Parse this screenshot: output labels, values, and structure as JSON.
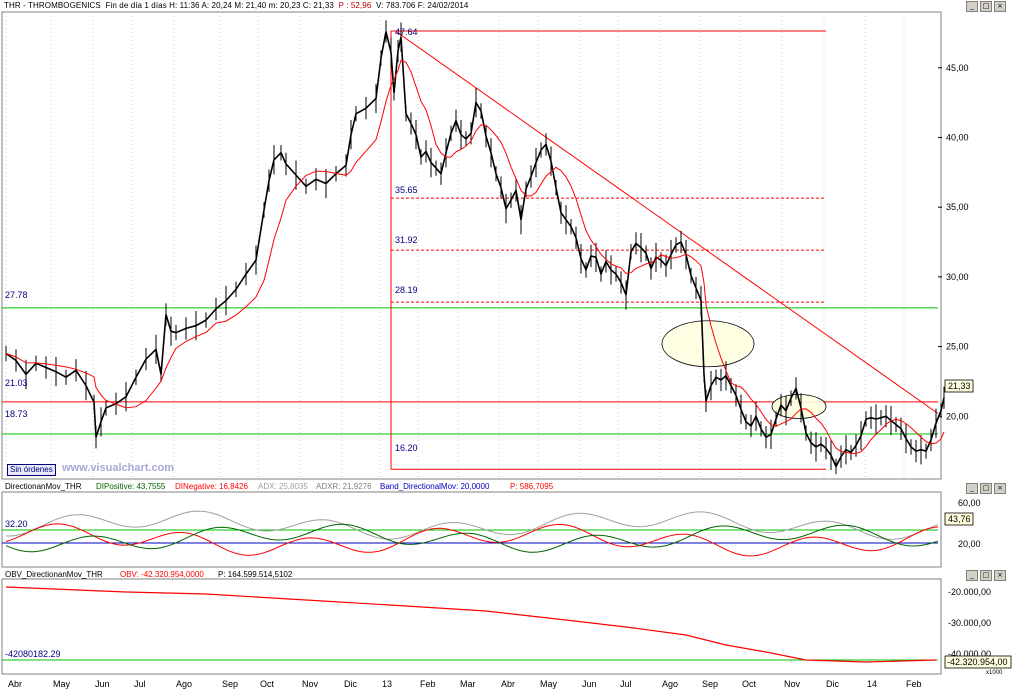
{
  "window": {
    "ticker": "THR - THROMBOGENICS",
    "info": "Fin de día 1 días  H: 11:36  A: 20,24  M: 21,40  m: 20,23  C: 21,33",
    "pct": "P : 52,96",
    "extra": "V: 783.706  F: 24/02/2014",
    "buttons": [
      "_",
      "□",
      "×"
    ]
  },
  "price_panel": {
    "y_ticks": [
      "45,00",
      "40,00",
      "35,00",
      "30,00",
      "25,00",
      "20,00"
    ],
    "last_price": "21,33",
    "levels": {
      "high": "47.64",
      "fib1": "35.65",
      "fib2": "31.92",
      "fib3": "28.19",
      "low": "16.20",
      "support1": "27.78",
      "support2": "21.03",
      "support3": "18.73"
    },
    "badge": "Sin órdenes",
    "brand": "www.visualchart.com"
  },
  "dmi_panel": {
    "label_name": "DirectionanMov_THR",
    "dip": "DIPositive: 43,7555",
    "din": "DINegative: 16,8426",
    "adx": "ADX: 25,8035",
    "adxr": "ADXR: 21,9276",
    "band": "Band_DirectionalMov: 20,0000",
    "p": "P: 586,7095",
    "level_label": "32.20",
    "y_ticks": [
      "60,00",
      "20,00"
    ],
    "last_value": "43,76"
  },
  "obv_panel": {
    "label_name": "OBV_DirectionanMov_THR",
    "obv": "OBV: -42.320.954,0000",
    "p": "P: 164.599.514,5102",
    "level_label": "-42080182.29",
    "y_ticks": [
      "-20.000,00",
      "-30.000,00",
      "-40.000,00"
    ],
    "last_value": "-42.320.954,00",
    "scale": "x1000"
  },
  "x_axis": [
    "Abr",
    "May",
    "Jun",
    "Jul",
    "Ago",
    "Sep",
    "Oct",
    "Nov",
    "Dic",
    "13",
    "Feb",
    "Mar",
    "Abr",
    "May",
    "Jun",
    "Jul",
    "Ago",
    "Sep",
    "Oct",
    "Nov",
    "Dic",
    "14",
    "Feb"
  ],
  "chart_data": {
    "type": "line",
    "series": [
      {
        "name": "THR",
        "points": [
          [
            0,
            24.5
          ],
          [
            10,
            24
          ],
          [
            20,
            23
          ],
          [
            30,
            23.8
          ],
          [
            40,
            23.5
          ],
          [
            50,
            23.2
          ],
          [
            60,
            22.8
          ],
          [
            70,
            23.3
          ],
          [
            80,
            22.2
          ],
          [
            88,
            21
          ],
          [
            90,
            18.5
          ],
          [
            95,
            19.6
          ],
          [
            100,
            20.6
          ],
          [
            110,
            20.9
          ],
          [
            120,
            21.4
          ],
          [
            130,
            22.8
          ],
          [
            140,
            24.1
          ],
          [
            150,
            24.8
          ],
          [
            155,
            23
          ],
          [
            160,
            27.3
          ],
          [
            165,
            26.1
          ],
          [
            170,
            26
          ],
          [
            180,
            26.3
          ],
          [
            190,
            26.5
          ],
          [
            200,
            26.9
          ],
          [
            210,
            27.7
          ],
          [
            220,
            28.3
          ],
          [
            230,
            29.1
          ],
          [
            240,
            30.2
          ],
          [
            250,
            31.2
          ],
          [
            258,
            34.8
          ],
          [
            263,
            36.9
          ],
          [
            268,
            38.4
          ],
          [
            275,
            38.9
          ],
          [
            280,
            38.1
          ],
          [
            290,
            37.3
          ],
          [
            300,
            36.5
          ],
          [
            310,
            37
          ],
          [
            320,
            36.7
          ],
          [
            330,
            37.4
          ],
          [
            340,
            38
          ],
          [
            345,
            40.2
          ],
          [
            350,
            41.7
          ],
          [
            360,
            42.1
          ],
          [
            370,
            42.8
          ],
          [
            375,
            45.7
          ],
          [
            380,
            47.6
          ],
          [
            385,
            46.1
          ],
          [
            388,
            43.2
          ],
          [
            392,
            46.2
          ],
          [
            395,
            47.2
          ],
          [
            400,
            41.7
          ],
          [
            405,
            41
          ],
          [
            410,
            40.2
          ],
          [
            415,
            38.6
          ],
          [
            420,
            39
          ],
          [
            425,
            38.2
          ],
          [
            430,
            37.8
          ],
          [
            435,
            37.4
          ],
          [
            440,
            38.9
          ],
          [
            445,
            40.3
          ],
          [
            450,
            41.2
          ],
          [
            455,
            40.2
          ],
          [
            460,
            39.9
          ],
          [
            465,
            40.3
          ],
          [
            470,
            42.5
          ],
          [
            475,
            41.9
          ],
          [
            480,
            40.1
          ],
          [
            485,
            38.9
          ],
          [
            490,
            37.4
          ],
          [
            495,
            36.4
          ],
          [
            500,
            34.9
          ],
          [
            505,
            35.5
          ],
          [
            510,
            36.2
          ],
          [
            515,
            34.1
          ],
          [
            520,
            36.3
          ],
          [
            525,
            37.2
          ],
          [
            530,
            38.2
          ],
          [
            535,
            39.1
          ],
          [
            540,
            39.5
          ],
          [
            545,
            38.3
          ],
          [
            550,
            36.4
          ],
          [
            555,
            34.6
          ],
          [
            560,
            34.1
          ],
          [
            565,
            33.6
          ],
          [
            570,
            32.8
          ],
          [
            575,
            31.3
          ],
          [
            580,
            30.5
          ],
          [
            585,
            31.5
          ],
          [
            590,
            31.4
          ],
          [
            595,
            30.2
          ],
          [
            600,
            31.1
          ],
          [
            605,
            30.5
          ],
          [
            610,
            30.2
          ],
          [
            615,
            29.6
          ],
          [
            620,
            28.7
          ],
          [
            625,
            31.8
          ],
          [
            630,
            32.4
          ],
          [
            635,
            32.1
          ],
          [
            640,
            31.7
          ],
          [
            645,
            30.6
          ],
          [
            650,
            31.4
          ],
          [
            655,
            31.2
          ],
          [
            660,
            30.8
          ],
          [
            665,
            31.6
          ],
          [
            670,
            32.3
          ],
          [
            675,
            32.5
          ],
          [
            680,
            31.6
          ],
          [
            685,
            30.1
          ],
          [
            690,
            29.2
          ],
          [
            695,
            28.3
          ],
          [
            698,
            23
          ],
          [
            700,
            21.1
          ],
          [
            705,
            22.2
          ],
          [
            710,
            22.8
          ],
          [
            715,
            22.6
          ],
          [
            720,
            22.9
          ],
          [
            725,
            22.2
          ],
          [
            730,
            21.5
          ],
          [
            735,
            20.5
          ],
          [
            740,
            19.6
          ],
          [
            745,
            19.3
          ],
          [
            750,
            20
          ],
          [
            755,
            19.1
          ],
          [
            760,
            18.5
          ],
          [
            765,
            18.7
          ],
          [
            770,
            19.8
          ],
          [
            775,
            20.8
          ],
          [
            780,
            20.4
          ],
          [
            785,
            21.3
          ],
          [
            790,
            22
          ],
          [
            795,
            20.6
          ],
          [
            800,
            18.8
          ],
          [
            805,
            18.1
          ],
          [
            810,
            17.8
          ],
          [
            815,
            18
          ],
          [
            820,
            17.7
          ],
          [
            825,
            17.2
          ],
          [
            830,
            16.4
          ],
          [
            835,
            17.1
          ],
          [
            840,
            17.6
          ],
          [
            845,
            17.4
          ],
          [
            850,
            17.9
          ],
          [
            855,
            18.6
          ],
          [
            860,
            19.8
          ],
          [
            865,
            19.9
          ],
          [
            870,
            19.8
          ],
          [
            875,
            19.9
          ],
          [
            880,
            20
          ],
          [
            885,
            19.7
          ],
          [
            890,
            19.4
          ],
          [
            895,
            19.1
          ],
          [
            900,
            18.4
          ],
          [
            905,
            17.8
          ],
          [
            910,
            17.5
          ],
          [
            915,
            17.6
          ],
          [
            920,
            17.5
          ],
          [
            925,
            18.3
          ],
          [
            930,
            19.5
          ],
          [
            935,
            20.4
          ],
          [
            938,
            21.33
          ]
        ]
      }
    ],
    "x_axis": "time (Apr 2012 – Feb 2014)",
    "ylim": [
      15.5,
      49
    ],
    "annotations": [
      "47.64",
      "35.65",
      "31.92",
      "28.19",
      "16.20",
      "27.78",
      "21.03",
      "18.73"
    ]
  },
  "colors": {
    "price": "#000000",
    "ma": "#ff0000",
    "support": "#00c000",
    "resistance": "#ff0000",
    "axis_text": "#000080",
    "dip": "#006400",
    "din": "#ff0000",
    "adx": "#a0a0a0"
  }
}
